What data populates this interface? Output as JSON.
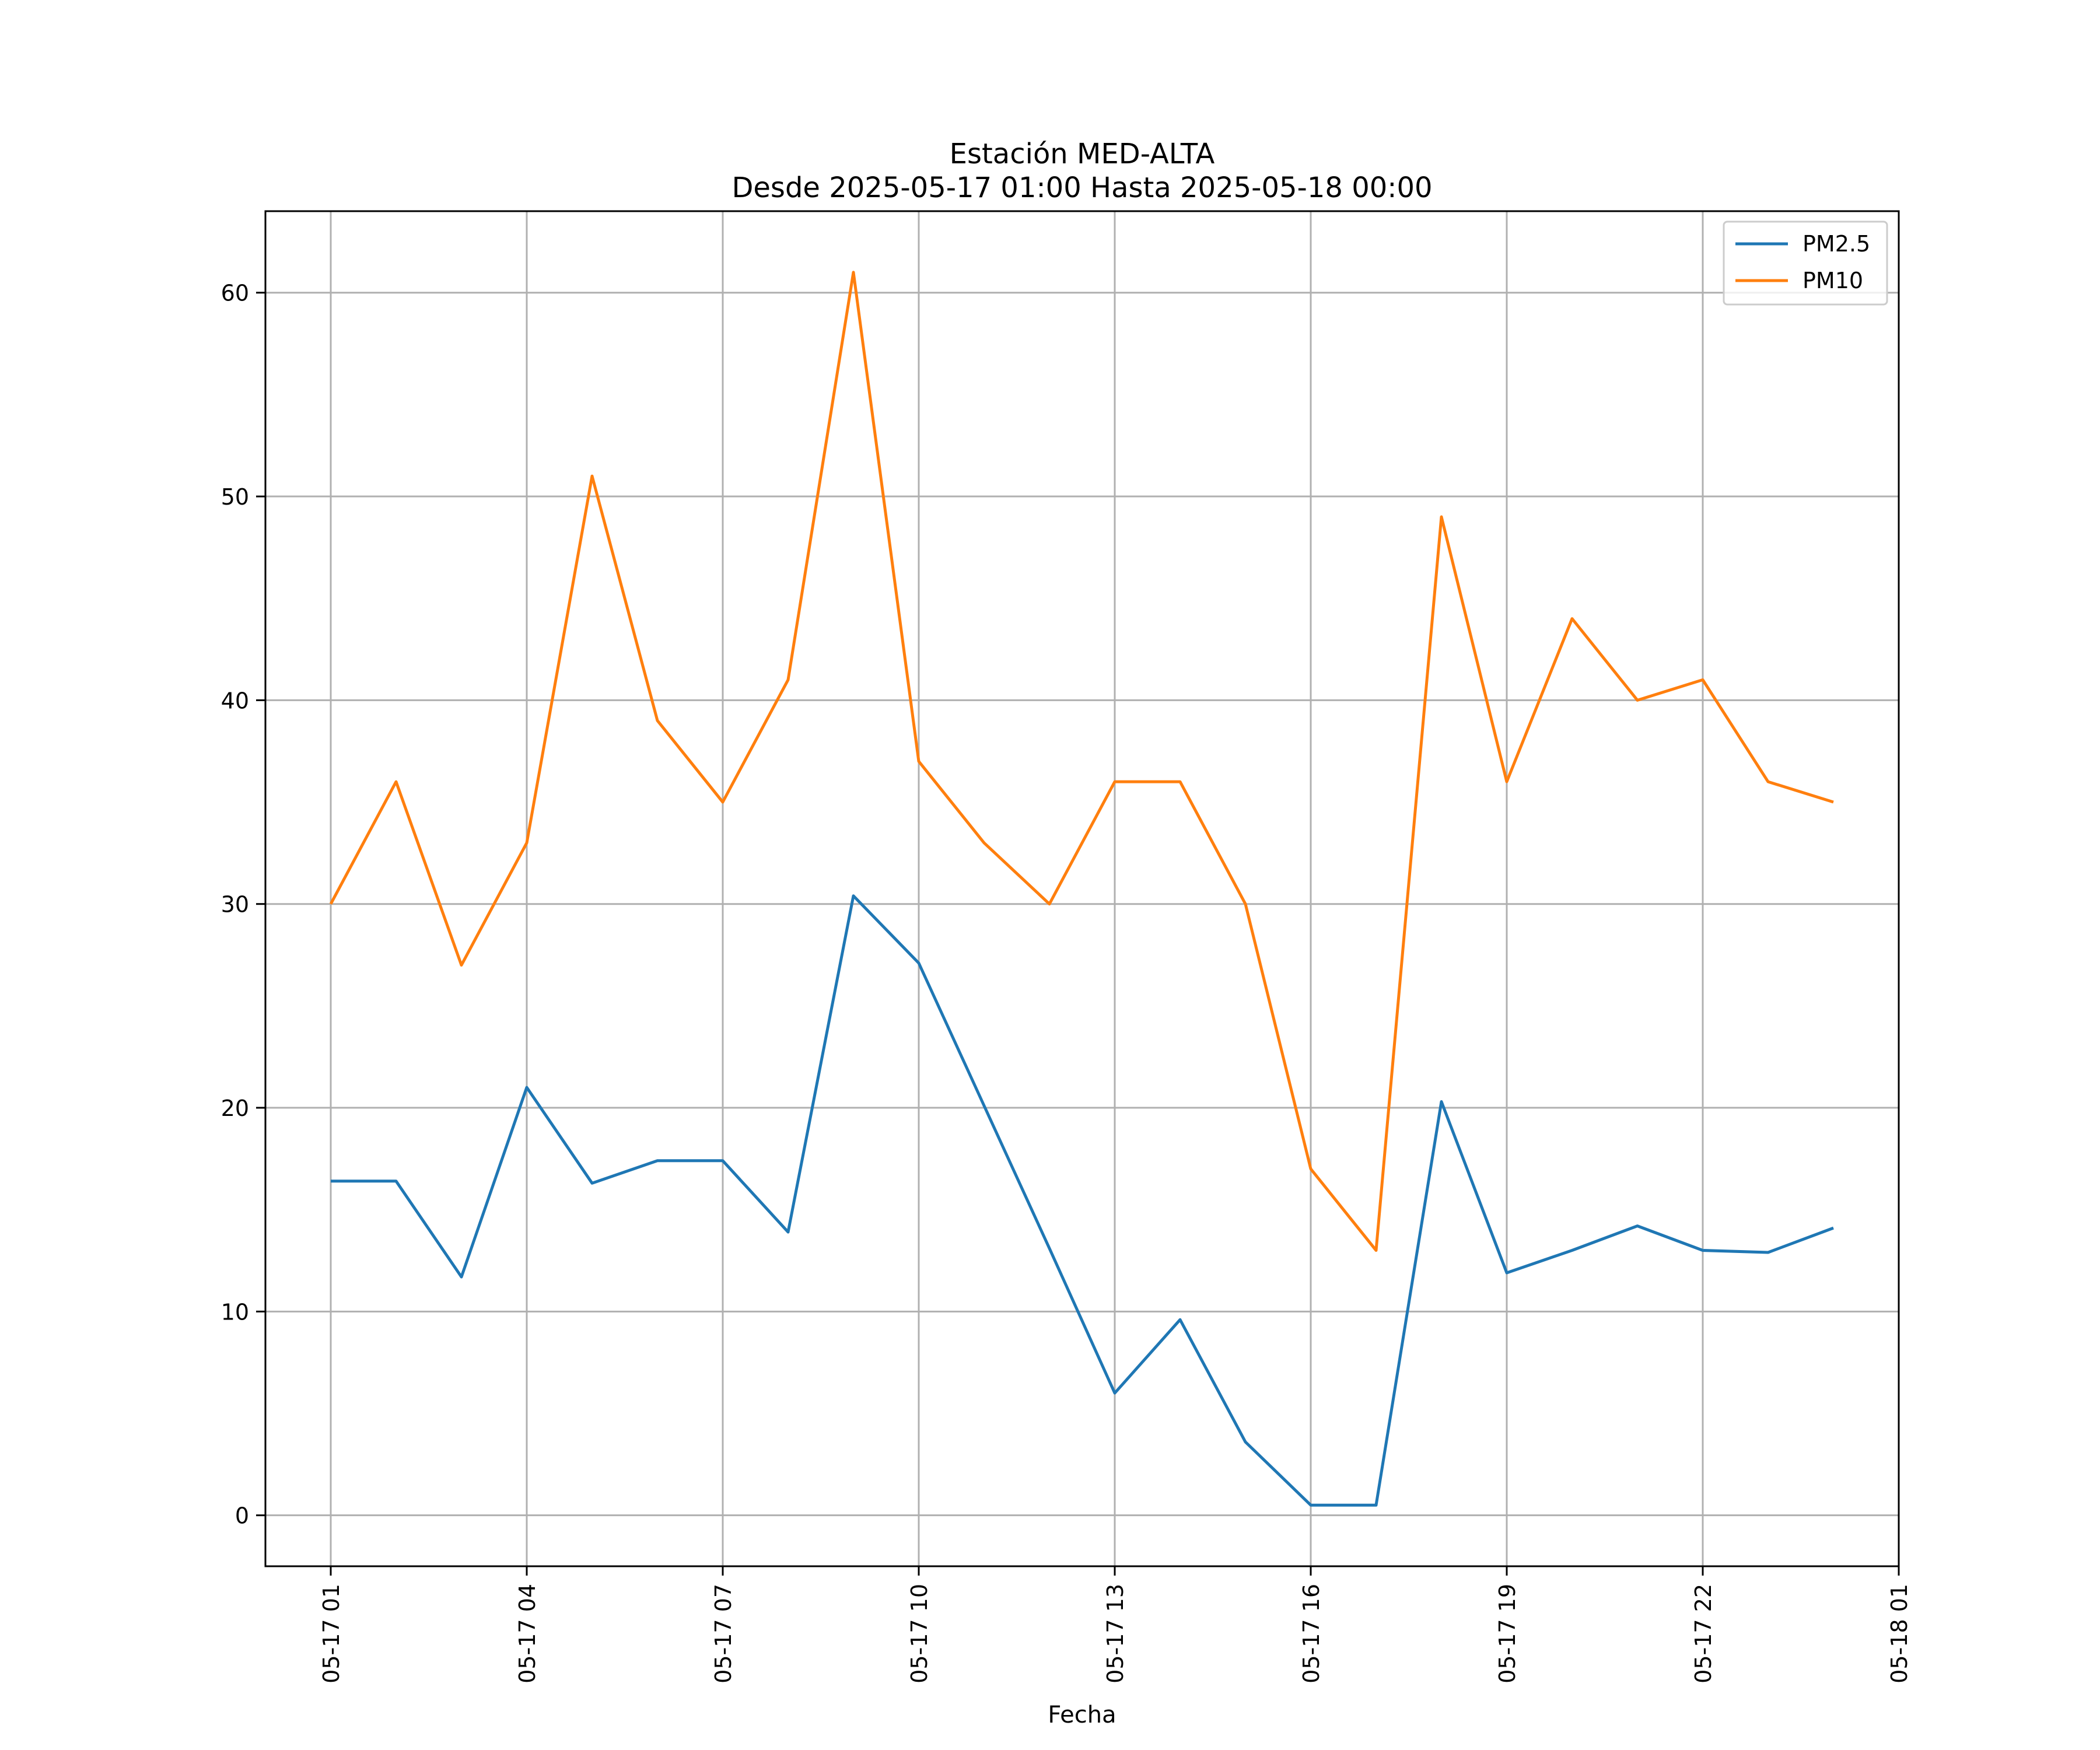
{
  "chart_data": {
    "type": "line",
    "title": "Estación MED-ALTA",
    "subtitle": "Desde 2025-05-17 01:00 Hasta 2025-05-18 00:00",
    "xlabel": "Fecha",
    "ylabel": "",
    "x": [
      "05-17 01",
      "05-17 02",
      "05-17 03",
      "05-17 04",
      "05-17 05",
      "05-17 06",
      "05-17 07",
      "05-17 08",
      "05-17 09",
      "05-17 10",
      "05-17 11",
      "05-17 12",
      "05-17 13",
      "05-17 14",
      "05-17 15",
      "05-17 16",
      "05-17 17",
      "05-17 18",
      "05-17 19",
      "05-17 20",
      "05-17 21",
      "05-17 22",
      "05-17 23",
      "05-18 00"
    ],
    "x_ticks": [
      "05-17 01",
      "05-17 04",
      "05-17 07",
      "05-17 10",
      "05-17 13",
      "05-17 16",
      "05-17 19",
      "05-17 22",
      "05-18 01"
    ],
    "x_range": [
      "05-17 00:00",
      "05-18 01:00"
    ],
    "ylim": [
      -2.5,
      64
    ],
    "y_ticks": [
      0,
      10,
      20,
      30,
      40,
      50,
      60
    ],
    "grid": true,
    "legend": "top-right",
    "series": [
      {
        "name": "PM2.5",
        "color": "#1f77b4",
        "values": [
          16.4,
          16.4,
          11.7,
          21.0,
          16.3,
          17.4,
          17.4,
          13.9,
          30.4,
          27.1,
          20.1,
          13.1,
          6.0,
          9.6,
          3.6,
          0.5,
          0.5,
          20.3,
          11.9,
          13.0,
          14.2,
          13.0,
          12.9,
          14.1
        ]
      },
      {
        "name": "PM10",
        "color": "#ff7f0e",
        "values": [
          30,
          36,
          27,
          33,
          51,
          39,
          35,
          41,
          61,
          37,
          33,
          30,
          36,
          36,
          30,
          17,
          13,
          49,
          36,
          44,
          40,
          41,
          36,
          35
        ]
      }
    ]
  }
}
